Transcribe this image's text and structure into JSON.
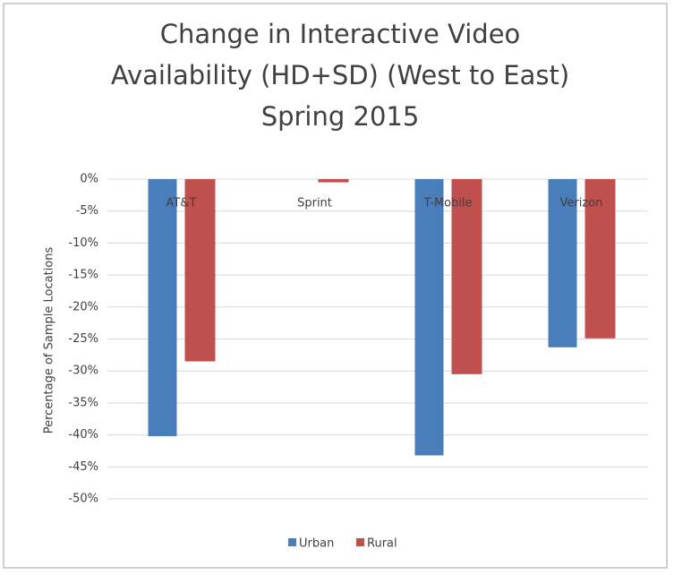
{
  "chart_data": {
    "type": "bar",
    "title": [
      "Change in Interactive Video",
      "Availability (HD+SD) (West to East)",
      "Spring 2015"
    ],
    "y_label": "Percentage of Sample Locations",
    "categories": [
      "AT&T",
      "Sprint",
      "T-Mobile",
      "Verizon"
    ],
    "series": [
      {
        "name": "Urban",
        "color": "#4a7ebb",
        "values": [
          -40.2,
          0,
          -43.2,
          -26.3
        ]
      },
      {
        "name": "Rural",
        "color": "#c0504d",
        "values": [
          -28.5,
          -0.5,
          -30.5,
          -24.9
        ]
      }
    ],
    "ylim": [
      -50,
      0
    ],
    "yticks": [
      {
        "value": 0,
        "label": "0%"
      },
      {
        "value": -5,
        "label": "-5%"
      },
      {
        "value": -10,
        "label": "-10%"
      },
      {
        "value": -15,
        "label": "-15%"
      },
      {
        "value": -20,
        "label": "-20%"
      },
      {
        "value": -25,
        "label": "-25%"
      },
      {
        "value": -30,
        "label": "-30%"
      },
      {
        "value": -35,
        "label": "-35%"
      },
      {
        "value": -40,
        "label": "-40%"
      },
      {
        "value": -45,
        "label": "-45%"
      },
      {
        "value": -50,
        "label": "-50%"
      }
    ],
    "grid": true,
    "legend": "bottom"
  }
}
